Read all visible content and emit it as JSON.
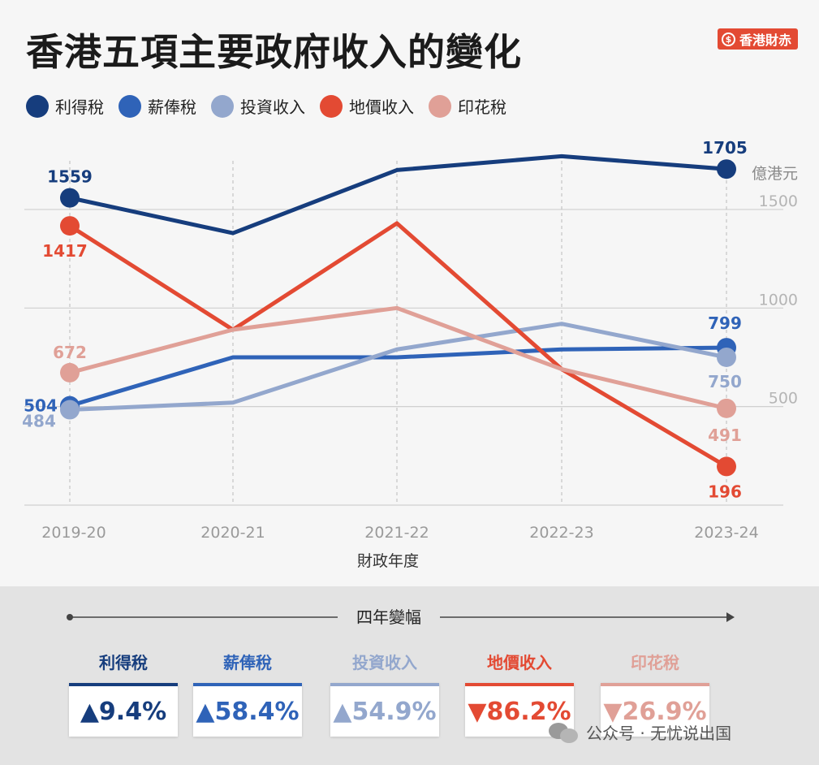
{
  "header": {
    "title": "香港五項主要政府收入的變化",
    "brand": "香港財赤",
    "brand_symbol": "$"
  },
  "legend": [
    {
      "label": "利得稅",
      "color": "#163d7d"
    },
    {
      "label": "薪俸稅",
      "color": "#2f63b8"
    },
    {
      "label": "投資收入",
      "color": "#93a7cd"
    },
    {
      "label": "地價收入",
      "color": "#e34a33"
    },
    {
      "label": "印花稅",
      "color": "#e0a097"
    }
  ],
  "chart_data": {
    "type": "line",
    "unit": "億港元",
    "xlabel": "財政年度",
    "ylabel": "",
    "categories": [
      "2019-20",
      "2020-21",
      "2021-22",
      "2022-23",
      "2023-24"
    ],
    "yticks": [
      500,
      1000,
      1500
    ],
    "ylim": [
      0,
      2050
    ],
    "series": [
      {
        "name": "利得稅",
        "color": "#163d7d",
        "values": [
          1559,
          1380,
          1700,
          1770,
          1705
        ],
        "labels": [
          "1559",
          "",
          "",
          "",
          "1705"
        ]
      },
      {
        "name": "薪俸稅",
        "color": "#2f63b8",
        "values": [
          504,
          750,
          750,
          790,
          799
        ],
        "labels": [
          "504",
          "",
          "",
          "",
          "799"
        ]
      },
      {
        "name": "投資收入",
        "color": "#93a7cd",
        "values": [
          484,
          520,
          790,
          920,
          750
        ],
        "labels": [
          "484",
          "",
          "",
          "",
          "750"
        ]
      },
      {
        "name": "地價收入",
        "color": "#e34a33",
        "values": [
          1417,
          890,
          1430,
          690,
          196
        ],
        "labels": [
          "1417",
          "",
          "",
          "",
          "196"
        ]
      },
      {
        "name": "印花稅",
        "color": "#e0a097",
        "values": [
          672,
          890,
          1000,
          690,
          491
        ],
        "labels": [
          "672",
          "",
          "",
          "",
          "491"
        ]
      }
    ],
    "grid": true
  },
  "summary": {
    "span_label": "四年變幅",
    "changes": [
      {
        "label": "利得稅",
        "value": "▲9.4%",
        "color": "#163d7d"
      },
      {
        "label": "薪俸稅",
        "value": "▲58.4%",
        "color": "#2f63b8"
      },
      {
        "label": "投資收入",
        "value": "▲54.9%",
        "color": "#93a7cd"
      },
      {
        "label": "地價收入",
        "value": "▼86.2%",
        "color": "#e34a33"
      },
      {
        "label": "印花稅",
        "value": "▼26.9%",
        "color": "#e0a097"
      }
    ]
  },
  "watermark": "公众号 · 无忧说出国"
}
